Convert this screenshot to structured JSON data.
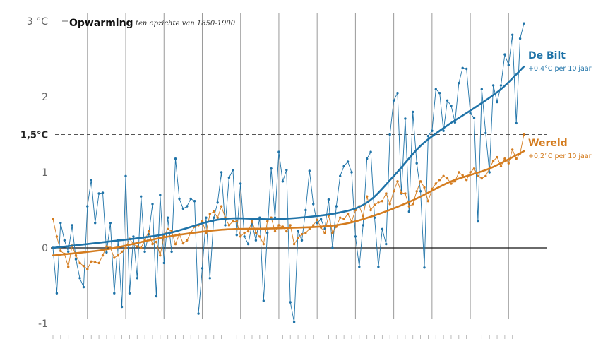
{
  "chart_data": {
    "type": "line",
    "title": "Opwarming",
    "subtitle": "ten opzichte van 1850-1900",
    "xlim": [
      1901,
      2024
    ],
    "ylim": [
      -1,
      3
    ],
    "y_ticks": [
      {
        "value": 3,
        "label": "3 °C"
      },
      {
        "value": 2,
        "label": "2"
      },
      {
        "value": 1.5,
        "label": "1,5°C"
      },
      {
        "value": 1,
        "label": "1"
      },
      {
        "value": 0,
        "label": "0"
      },
      {
        "value": -1,
        "label": "-1"
      }
    ],
    "grid": true,
    "series": [
      {
        "name": "De Bilt",
        "note": "+0,4°C per 10 jaar",
        "color": "#1f73a8",
        "x_start": 1901,
        "values": [
          0.0,
          -0.6,
          0.33,
          0.1,
          -0.05,
          0.3,
          -0.15,
          -0.4,
          -0.52,
          0.55,
          0.9,
          0.33,
          0.72,
          0.73,
          -0.06,
          0.33,
          -0.6,
          0.1,
          -0.78,
          0.95,
          -0.6,
          0.15,
          -0.4,
          0.68,
          -0.05,
          0.18,
          0.58,
          -0.64,
          0.7,
          -0.2,
          0.4,
          -0.05,
          1.18,
          0.65,
          0.52,
          0.55,
          0.65,
          0.62,
          -0.87,
          -0.27,
          0.4,
          -0.4,
          0.4,
          0.6,
          1.0,
          0.3,
          0.93,
          1.03,
          0.17,
          0.85,
          0.15,
          0.05,
          0.32,
          0.1,
          0.4,
          -0.7,
          0.2,
          1.05,
          0.4,
          1.27,
          0.88,
          1.03,
          -0.72,
          -0.98,
          0.22,
          0.1,
          0.5,
          1.02,
          0.58,
          0.33,
          0.38,
          0.25,
          0.64,
          0.0,
          0.55,
          0.95,
          1.08,
          1.14,
          1.0,
          0.15,
          -0.25,
          0.3,
          1.18,
          1.27,
          0.4,
          -0.25,
          0.25,
          0.05,
          1.5,
          1.95,
          2.05,
          0.72,
          1.71,
          0.48,
          1.8,
          1.12,
          0.75,
          -0.26,
          1.48,
          1.55,
          2.1,
          2.05,
          1.55,
          1.95,
          1.88,
          1.66,
          2.18,
          2.38,
          2.37,
          1.78,
          1.72,
          0.35,
          2.1,
          1.52,
          1.0,
          2.15,
          1.93,
          2.15,
          2.56,
          2.42,
          2.82,
          1.65,
          2.77,
          2.97
        ]
      },
      {
        "name": "Wereld",
        "note": "+0,2°C per 10 jaar",
        "color": "#d47c1f",
        "x_start": 1901,
        "values": [
          0.38,
          0.15,
          -0.04,
          -0.08,
          -0.25,
          0.03,
          -0.1,
          -0.2,
          -0.24,
          -0.28,
          -0.18,
          -0.19,
          -0.2,
          -0.1,
          0.02,
          0.0,
          -0.13,
          -0.1,
          -0.05,
          0.0,
          0.12,
          0.05,
          0.02,
          0.0,
          0.1,
          0.22,
          0.05,
          0.08,
          -0.1,
          0.16,
          0.25,
          0.22,
          0.05,
          0.18,
          0.06,
          0.1,
          0.2,
          0.28,
          0.3,
          0.35,
          0.2,
          0.45,
          0.48,
          0.4,
          0.55,
          0.4,
          0.3,
          0.35,
          0.35,
          0.15,
          0.2,
          0.22,
          0.35,
          0.2,
          0.15,
          0.05,
          0.35,
          0.4,
          0.22,
          0.3,
          0.28,
          0.22,
          0.3,
          0.05,
          0.13,
          0.18,
          0.2,
          0.25,
          0.3,
          0.37,
          0.27,
          0.2,
          0.43,
          0.2,
          0.28,
          0.4,
          0.38,
          0.45,
          0.35,
          0.5,
          0.55,
          0.42,
          0.68,
          0.5,
          0.57,
          0.6,
          0.62,
          0.72,
          0.58,
          0.75,
          0.88,
          0.73,
          0.72,
          0.55,
          0.58,
          0.75,
          0.88,
          0.8,
          0.62,
          0.78,
          0.85,
          0.9,
          0.95,
          0.92,
          0.85,
          0.88,
          1.0,
          0.96,
          0.9,
          1.0,
          1.05,
          0.95,
          0.92,
          0.95,
          1.05,
          1.15,
          1.2,
          1.08,
          1.18,
          1.12,
          1.3,
          1.18,
          1.25,
          1.5
        ]
      }
    ],
    "trend_lines": [
      {
        "series": "De Bilt",
        "x": [
          1901,
          1915,
          1930,
          1945,
          1960,
          1975,
          1983,
          1990,
          1997,
          2004,
          2011,
          2018,
          2024
        ],
        "y": [
          0.0,
          0.08,
          0.18,
          0.38,
          0.38,
          0.46,
          0.6,
          0.95,
          1.35,
          1.62,
          1.85,
          2.1,
          2.4
        ]
      },
      {
        "series": "Wereld",
        "x": [
          1901,
          1915,
          1930,
          1945,
          1960,
          1975,
          1985,
          1995,
          2005,
          2015,
          2024
        ],
        "y": [
          -0.1,
          -0.02,
          0.14,
          0.24,
          0.26,
          0.3,
          0.43,
          0.63,
          0.88,
          1.05,
          1.28
        ]
      }
    ]
  }
}
